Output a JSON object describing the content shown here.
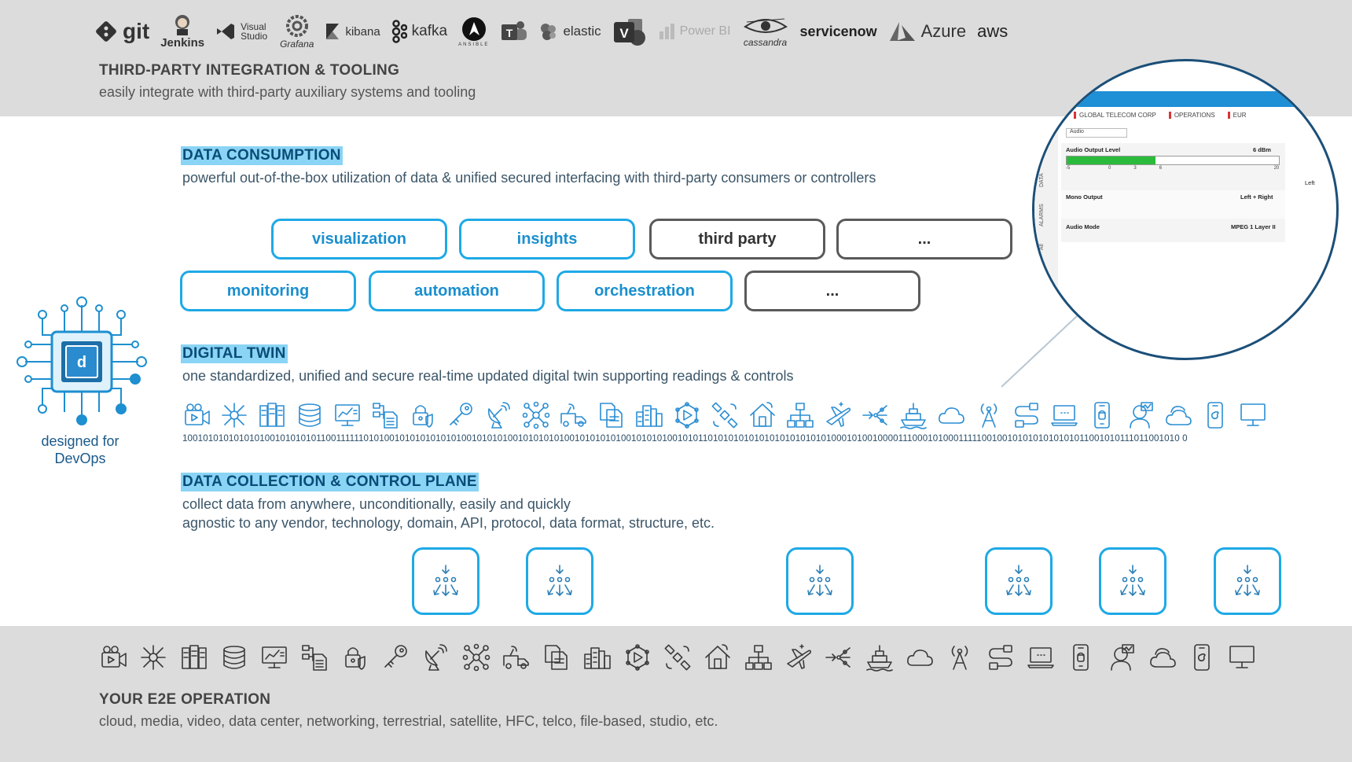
{
  "integration": {
    "logos": [
      {
        "name": "git-logo",
        "text": "git"
      },
      {
        "name": "jenkins-logo",
        "text": "Jenkins"
      },
      {
        "name": "visual-studio-logo",
        "text": "Visual Studio"
      },
      {
        "name": "grafana-logo",
        "text": "Grafana"
      },
      {
        "name": "kibana-logo",
        "text": "kibana"
      },
      {
        "name": "kafka-logo",
        "text": "kafka"
      },
      {
        "name": "ansible-logo",
        "text": "ANSIBLE"
      },
      {
        "name": "teams-logo",
        "text": ""
      },
      {
        "name": "elastic-logo",
        "text": "elastic"
      },
      {
        "name": "visio-logo",
        "text": ""
      },
      {
        "name": "powerbi-logo",
        "text": "Power BI"
      },
      {
        "name": "cassandra-logo",
        "text": "cassandra"
      },
      {
        "name": "servicenow-logo",
        "text": "servicenow"
      },
      {
        "name": "azure-logo",
        "text": "Azure"
      },
      {
        "name": "aws-logo",
        "text": "aws"
      }
    ],
    "title": "THIRD-PARTY INTEGRATION & TOOLING",
    "subtitle": "easily integrate with third-party auxiliary systems and tooling"
  },
  "consumption": {
    "title": "DATA CONSUMPTION",
    "subtitle": "powerful out-of-the-box utilization of data & unified secured interfacing with third-party consumers or controllers",
    "row1": [
      "visualization",
      "insights",
      "third party",
      "..."
    ],
    "row2": [
      "monitoring",
      "automation",
      "orchestration",
      "..."
    ]
  },
  "devops": {
    "label_line1": "designed for",
    "label_line2": "DevOps",
    "chip_letter": "d"
  },
  "digital_twin": {
    "title": "DIGITAL TWIN",
    "subtitle": "one standardized, unified and secure real-time updated digital twin supporting readings & controls",
    "binary": "1001010101010101001010101011001111110101001010101010101001010101001010101010010101010100101010100101011010101010101010101010101000101001000011100010100011111001001010101010101011001010111011001010 0"
  },
  "collection": {
    "title": "DATA COLLECTION & CONTROL PLANE",
    "line1": "collect data from anywhere, unconditionally, easily and quickly",
    "line2": "agnostic to any vendor, technology, domain, API, protocol, data format, structure, etc."
  },
  "operation": {
    "title": "YOUR E2E OPERATION",
    "subtitle": "cloud, media, video, data center, networking, terrestrial, satellite, HFC, telco, file-based, studio, etc."
  },
  "icon_names": [
    "video-camera-icon",
    "network-hub-icon",
    "server-rack-icon",
    "database-icon",
    "monitor-chart-icon",
    "workflow-doc-icon",
    "lock-shield-icon",
    "key-icon",
    "satellite-dish-icon",
    "mesh-network-icon",
    "broadcast-van-icon",
    "file-copy-icon",
    "city-buildings-icon",
    "cube-network-icon",
    "satellite-icon",
    "smart-home-icon",
    "org-tree-icon",
    "airplane-icon",
    "routing-arrows-icon",
    "ship-icon",
    "cloud-icon",
    "radio-tower-icon",
    "cable-icon",
    "laptop-icon",
    "android-phone-icon",
    "avatar-icon",
    "cloud-double-icon",
    "apple-phone-icon",
    "desktop-icon"
  ],
  "magnifier": {
    "crumbs": [
      "GLOBAL TELECOM CORP",
      "OPERATIONS",
      "EUR"
    ],
    "select": "Audio",
    "audio_output_label": "Audio Output Level",
    "audio_output_value": "6 dBm",
    "level_fraction": 0.42,
    "ticks": [
      "-5",
      "0",
      "3",
      "6",
      "20"
    ],
    "mono_label": "Mono Output",
    "mono_value": "Left + Right",
    "mode_label": "Audio Mode",
    "mode_value": "MPEG 1 Layer II",
    "tabs": [
      "DATA",
      "ALARMS",
      "All"
    ],
    "right_labels": [
      "Left"
    ]
  },
  "colors": {
    "accent": "#1ea9e6",
    "highlight": "#8ad4f5",
    "dark_blue": "#0a4c78",
    "band": "#dcdcdc",
    "level_green": "#2bbb3c"
  }
}
